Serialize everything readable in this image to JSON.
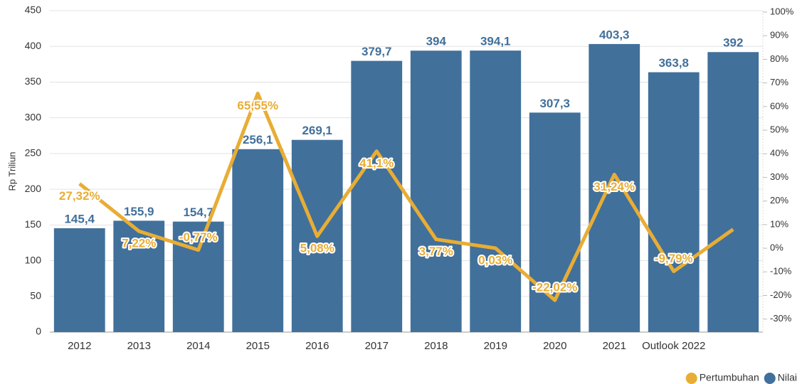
{
  "chart_data": {
    "type": "bar",
    "y_label": "Rp Triliun",
    "categories": [
      "2012",
      "2013",
      "2014",
      "2015",
      "2016",
      "2017",
      "2018",
      "2019",
      "2020",
      "2021",
      "Outlook 2022",
      null
    ],
    "series": [
      {
        "name": "Pertumbuhan",
        "type": "line",
        "axis": "y2",
        "color": "#e8ad35",
        "values": [
          27.32,
          7.22,
          -0.77,
          65.55,
          5.08,
          41.1,
          3.77,
          0.03,
          -22.02,
          31.24,
          -9.79,
          8
        ],
        "value_labels": [
          "27,32%",
          "7,22%",
          "-0,77%",
          "65,55%",
          "5,08%",
          "41,1%",
          "3,77%",
          "0,03%",
          "-22,02%",
          "31,24%",
          "-9,79%",
          null
        ]
      },
      {
        "name": "Nilai",
        "type": "bar",
        "color": "#41709b",
        "values": [
          145.4,
          155.9,
          154.7,
          256.1,
          269.1,
          379.7,
          394,
          394.1,
          307.3,
          403.3,
          363.8,
          392
        ],
        "value_labels": [
          "145,4",
          "155,9",
          "154,7",
          "256,1",
          "269,1",
          "379,7",
          "394",
          "394,1",
          "307,3",
          "403,3",
          "363,8",
          "392"
        ]
      }
    ],
    "ylim": [
      0,
      450
    ],
    "yticks": [
      0,
      50,
      100,
      150,
      200,
      250,
      300,
      350,
      400,
      450
    ],
    "y2lim": [
      -35.5,
      100.6
    ],
    "y2ticks": [
      {
        "value": -30,
        "label": "-30%"
      },
      {
        "value": -20,
        "label": "-20%"
      },
      {
        "value": -10,
        "label": "-10%"
      },
      {
        "value": 0,
        "label": "0%"
      },
      {
        "value": 10,
        "label": "10%"
      },
      {
        "value": 20,
        "label": "20%"
      },
      {
        "value": 30,
        "label": "30%"
      },
      {
        "value": 40,
        "label": "40%"
      },
      {
        "value": 50,
        "label": "50%"
      },
      {
        "value": 60,
        "label": "60%"
      },
      {
        "value": 70,
        "label": "70%"
      },
      {
        "value": 80,
        "label": "80%"
      },
      {
        "value": 90,
        "label": "90%"
      },
      {
        "value": 100,
        "label": "100%"
      }
    ],
    "grid": true,
    "legend_position": "bottom-right"
  }
}
